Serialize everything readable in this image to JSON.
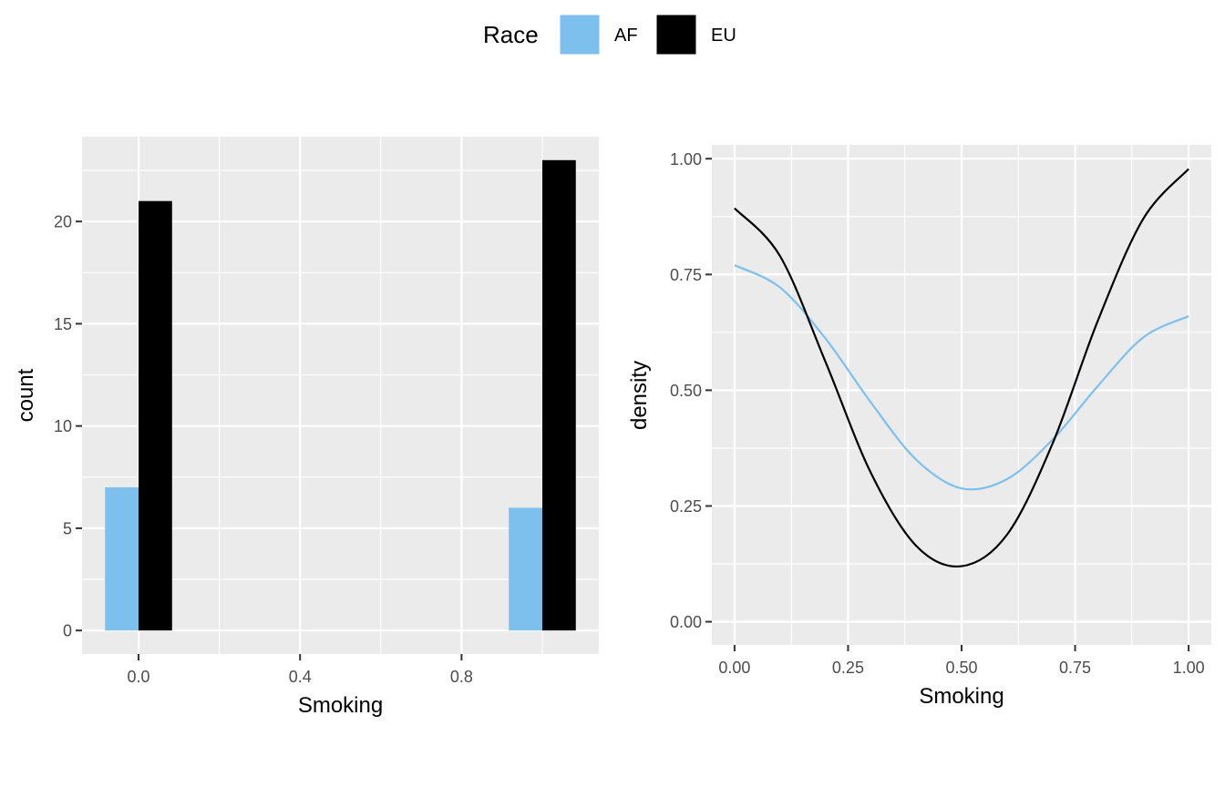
{
  "legend": {
    "title": "Race",
    "position": "top",
    "entries": [
      {
        "label": "AF",
        "color": "#7DC0EE"
      },
      {
        "label": "EU",
        "color": "#000000"
      }
    ]
  },
  "colors": {
    "panel_background": "#EBEBEB",
    "grid": "#FFFFFF",
    "tick_text": "#4D4D4D"
  },
  "chart_data": [
    {
      "type": "bar",
      "position": "dodge",
      "xlabel": "Smoking",
      "ylabel": "count",
      "xlim": [
        -0.14,
        1.14
      ],
      "ylim": [
        -1.15,
        24.15
      ],
      "xticks": [
        "0.0",
        "0.4",
        "0.8"
      ],
      "xtick_values": [
        0.0,
        0.4,
        0.8
      ],
      "yticks": [
        "0",
        "5",
        "10",
        "15",
        "20"
      ],
      "ytick_values": [
        0,
        5,
        10,
        15,
        20
      ],
      "grid": true,
      "bin_width": 0.166,
      "categories": [
        0,
        1
      ],
      "series": [
        {
          "name": "AF",
          "color": "#7DC0EE",
          "values": [
            7,
            6
          ]
        },
        {
          "name": "EU",
          "color": "#000000",
          "values": [
            21,
            23
          ]
        }
      ]
    },
    {
      "type": "line",
      "xlabel": "Smoking",
      "ylabel": "density",
      "xlim": [
        -0.05,
        1.05
      ],
      "ylim": [
        -0.05,
        1.03
      ],
      "xticks": [
        "0.00",
        "0.25",
        "0.50",
        "0.75",
        "1.00"
      ],
      "xtick_values": [
        0,
        0.25,
        0.5,
        0.75,
        1.0
      ],
      "yticks": [
        "0.00",
        "0.25",
        "0.50",
        "0.75",
        "1.00"
      ],
      "ytick_values": [
        0,
        0.25,
        0.5,
        0.75,
        1.0
      ],
      "grid": true,
      "series": [
        {
          "name": "AF",
          "color": "#7DC0EE",
          "x": [
            0.0,
            0.1,
            0.2,
            0.3,
            0.4,
            0.5,
            0.6,
            0.7,
            0.8,
            0.9,
            1.0
          ],
          "y": [
            0.77,
            0.722,
            0.612,
            0.474,
            0.35,
            0.288,
            0.308,
            0.393,
            0.509,
            0.614,
            0.66
          ]
        },
        {
          "name": "EU",
          "color": "#000000",
          "x": [
            0.0,
            0.1,
            0.2,
            0.3,
            0.4,
            0.5,
            0.6,
            0.7,
            0.8,
            0.9,
            1.0
          ],
          "y": [
            0.893,
            0.79,
            0.562,
            0.322,
            0.164,
            0.12,
            0.188,
            0.384,
            0.65,
            0.87,
            0.978
          ]
        }
      ]
    }
  ]
}
